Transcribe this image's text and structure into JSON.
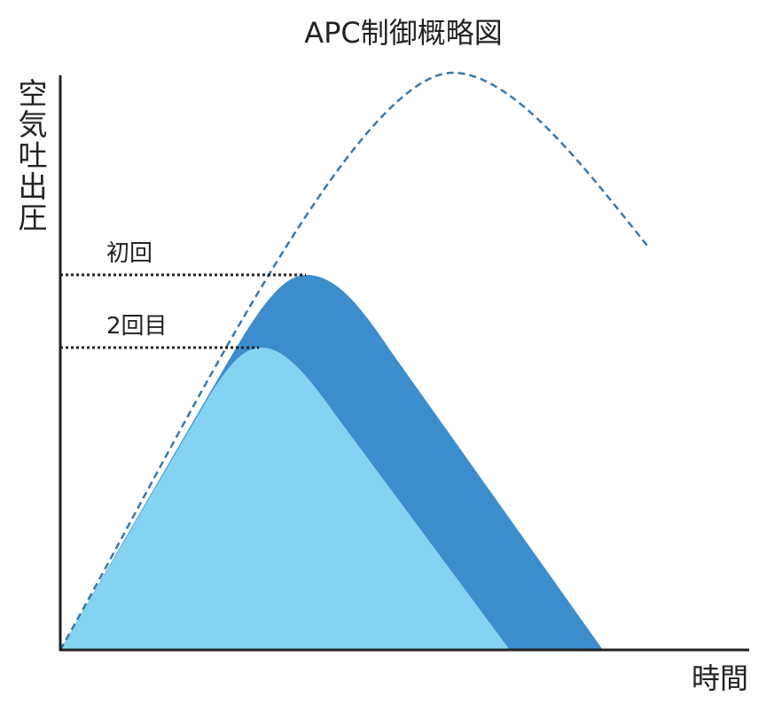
{
  "title": "APC制御概略図",
  "y_axis_label": "空気吐出圧",
  "x_axis_label": "時間",
  "annotations": [
    "初回",
    "2回目"
  ]
}
